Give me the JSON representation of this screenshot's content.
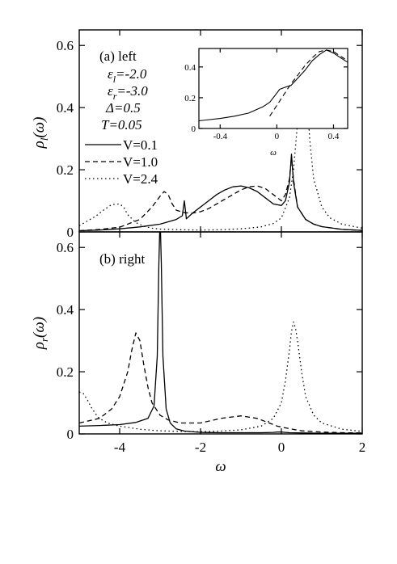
{
  "chart_data": [
    {
      "panel": "(a) left",
      "type": "line",
      "xlim": [
        -5,
        2
      ],
      "ylim": [
        0,
        0.65
      ],
      "xlabel": "",
      "ylabel": "ρ_l(ω)",
      "ylabel_main": "ρ",
      "ylabel_sub": "l",
      "ylabel_arg": "(ω)",
      "yticks": [
        "0",
        "0.2",
        "0.4",
        "0.6"
      ],
      "ytick_values": [
        0,
        0.2,
        0.4,
        0.6
      ],
      "annotations": {
        "eps_l": "ε",
        "eps_l_sub": "l",
        "eps_l_val": "=-2.0",
        "eps_r": "ε",
        "eps_r_sub": "r",
        "eps_r_val": "=-3.0",
        "delta": "Δ=0.5",
        "temp": "T=0.05"
      },
      "series": [
        {
          "name": "V=0.1",
          "style": "solid",
          "x": [
            -5.0,
            -4.5,
            -4.0,
            -3.5,
            -3.0,
            -2.6,
            -2.45,
            -2.4,
            -2.35,
            -2.2,
            -2.0,
            -1.8,
            -1.6,
            -1.4,
            -1.2,
            -1.0,
            -0.8,
            -0.6,
            -0.4,
            -0.2,
            0.0,
            0.1,
            0.2,
            0.25,
            0.3,
            0.4,
            0.6,
            0.8,
            1.0,
            1.5,
            2.0
          ],
          "y": [
            0.004,
            0.006,
            0.01,
            0.016,
            0.025,
            0.04,
            0.052,
            0.1,
            0.042,
            0.06,
            0.08,
            0.1,
            0.12,
            0.135,
            0.145,
            0.148,
            0.142,
            0.13,
            0.11,
            0.09,
            0.085,
            0.1,
            0.16,
            0.25,
            0.16,
            0.08,
            0.04,
            0.025,
            0.017,
            0.008,
            0.005
          ]
        },
        {
          "name": "V=1.0",
          "style": "dashed",
          "x": [
            -5.0,
            -4.5,
            -4.0,
            -3.5,
            -3.2,
            -3.0,
            -2.9,
            -2.8,
            -2.7,
            -2.6,
            -2.4,
            -2.2,
            -2.0,
            -1.8,
            -1.6,
            -1.4,
            -1.2,
            -1.0,
            -0.8,
            -0.6,
            -0.4,
            -0.2,
            0.0,
            0.1,
            0.2,
            0.25,
            0.3,
            0.4,
            0.6,
            0.8,
            1.0,
            1.5,
            2.0
          ],
          "y": [
            0.004,
            0.008,
            0.015,
            0.04,
            0.08,
            0.115,
            0.13,
            0.12,
            0.09,
            0.07,
            0.062,
            0.06,
            0.065,
            0.075,
            0.09,
            0.105,
            0.12,
            0.135,
            0.145,
            0.148,
            0.14,
            0.12,
            0.1,
            0.12,
            0.17,
            0.24,
            0.17,
            0.08,
            0.04,
            0.025,
            0.017,
            0.008,
            0.005
          ]
        },
        {
          "name": "V=2.4",
          "style": "dotted",
          "x": [
            -5.0,
            -4.8,
            -4.6,
            -4.4,
            -4.2,
            -4.0,
            -3.9,
            -3.8,
            -3.6,
            -3.4,
            -3.2,
            -3.0,
            -2.5,
            -2.0,
            -1.5,
            -1.0,
            -0.5,
            -0.2,
            0.0,
            0.2,
            0.3,
            0.4,
            0.5,
            0.55,
            0.6,
            0.7,
            0.8,
            1.0,
            1.2,
            1.5,
            2.0
          ],
          "y": [
            0.02,
            0.035,
            0.05,
            0.07,
            0.088,
            0.09,
            0.08,
            0.055,
            0.03,
            0.018,
            0.012,
            0.009,
            0.007,
            0.006,
            0.007,
            0.01,
            0.016,
            0.027,
            0.045,
            0.11,
            0.2,
            0.35,
            0.5,
            0.55,
            0.5,
            0.3,
            0.17,
            0.08,
            0.045,
            0.025,
            0.012
          ]
        }
      ],
      "inset": {
        "type": "line",
        "xlim": [
          -0.55,
          0.5
        ],
        "ylim": [
          0,
          0.52
        ],
        "xlabel": "ω",
        "xticks": [
          "-0.4",
          "0",
          "0.4"
        ],
        "xtick_values": [
          -0.4,
          0,
          0.4
        ],
        "yticks": [
          "0",
          "0.2",
          "0.4"
        ],
        "ytick_values": [
          0,
          0.2,
          0.4
        ],
        "series": [
          {
            "name": "solid",
            "style": "solid",
            "x": [
              -0.55,
              -0.4,
              -0.3,
              -0.2,
              -0.1,
              -0.05,
              0.0,
              0.02,
              0.05,
              0.1,
              0.15,
              0.2,
              0.25,
              0.3,
              0.35,
              0.4,
              0.45,
              0.5
            ],
            "y": [
              0.05,
              0.065,
              0.08,
              0.1,
              0.14,
              0.17,
              0.23,
              0.255,
              0.265,
              0.28,
              0.33,
              0.38,
              0.44,
              0.48,
              0.51,
              0.49,
              0.46,
              0.43
            ]
          },
          {
            "name": "dashed",
            "style": "dashed",
            "x": [
              -0.05,
              0.0,
              0.05,
              0.1,
              0.15,
              0.2,
              0.25,
              0.3,
              0.35,
              0.4,
              0.45,
              0.5
            ],
            "y": [
              0.08,
              0.15,
              0.22,
              0.29,
              0.35,
              0.41,
              0.46,
              0.5,
              0.51,
              0.5,
              0.47,
              0.44
            ]
          }
        ]
      }
    },
    {
      "panel": "(b) right",
      "type": "line",
      "xlim": [
        -5,
        2
      ],
      "ylim": [
        0,
        0.65
      ],
      "xlabel": "ω",
      "ylabel": "ρ_r(ω)",
      "ylabel_main": "ρ",
      "ylabel_sub": "r",
      "ylabel_arg": "(ω)",
      "xticks": [
        "-4",
        "-2",
        "0",
        "2"
      ],
      "xtick_values": [
        -4,
        -2,
        0,
        2
      ],
      "yticks": [
        "0",
        "0.2",
        "0.4",
        "0.6"
      ],
      "ytick_values": [
        0,
        0.2,
        0.4,
        0.6
      ],
      "series": [
        {
          "name": "V=0.1",
          "style": "solid",
          "x": [
            -5.0,
            -4.5,
            -4.0,
            -3.6,
            -3.3,
            -3.15,
            -3.07,
            -3.03,
            -3.0,
            -2.97,
            -2.93,
            -2.85,
            -2.75,
            -2.6,
            -2.4,
            -2.0,
            -1.5,
            -1.0,
            -0.5,
            -0.2,
            -0.1,
            0.0,
            0.1,
            0.2,
            0.5,
            1.0,
            1.5,
            2.0
          ],
          "y": [
            0.025,
            0.027,
            0.03,
            0.037,
            0.05,
            0.09,
            0.25,
            0.55,
            0.7,
            0.55,
            0.25,
            0.08,
            0.035,
            0.016,
            0.009,
            0.005,
            0.004,
            0.004,
            0.004,
            0.005,
            0.006,
            0.006,
            0.005,
            0.004,
            0.003,
            0.002,
            0.002,
            0.002
          ]
        },
        {
          "name": "V=1.0",
          "style": "dashed",
          "x": [
            -5.0,
            -4.5,
            -4.2,
            -4.0,
            -3.8,
            -3.7,
            -3.6,
            -3.5,
            -3.4,
            -3.3,
            -3.2,
            -3.0,
            -2.8,
            -2.5,
            -2.0,
            -1.5,
            -1.0,
            -0.6,
            -0.3,
            -0.1,
            0.0,
            0.2,
            0.5,
            1.0,
            1.5,
            2.0
          ],
          "y": [
            0.035,
            0.05,
            0.08,
            0.12,
            0.2,
            0.27,
            0.325,
            0.3,
            0.22,
            0.15,
            0.1,
            0.06,
            0.045,
            0.035,
            0.035,
            0.05,
            0.058,
            0.05,
            0.035,
            0.025,
            0.022,
            0.017,
            0.01,
            0.006,
            0.004,
            0.003
          ]
        },
        {
          "name": "V=2.4",
          "style": "dotted",
          "x": [
            -5.0,
            -4.9,
            -4.8,
            -4.7,
            -4.6,
            -4.5,
            -4.3,
            -4.0,
            -3.5,
            -3.0,
            -2.5,
            -2.0,
            -1.5,
            -1.0,
            -0.5,
            -0.2,
            0.0,
            0.1,
            0.2,
            0.25,
            0.3,
            0.35,
            0.4,
            0.5,
            0.6,
            0.8,
            1.0,
            1.5,
            2.0
          ],
          "y": [
            0.135,
            0.13,
            0.11,
            0.085,
            0.065,
            0.05,
            0.035,
            0.025,
            0.015,
            0.01,
            0.008,
            0.007,
            0.009,
            0.013,
            0.025,
            0.05,
            0.1,
            0.17,
            0.27,
            0.33,
            0.36,
            0.34,
            0.3,
            0.2,
            0.12,
            0.06,
            0.035,
            0.015,
            0.008
          ]
        }
      ]
    }
  ]
}
